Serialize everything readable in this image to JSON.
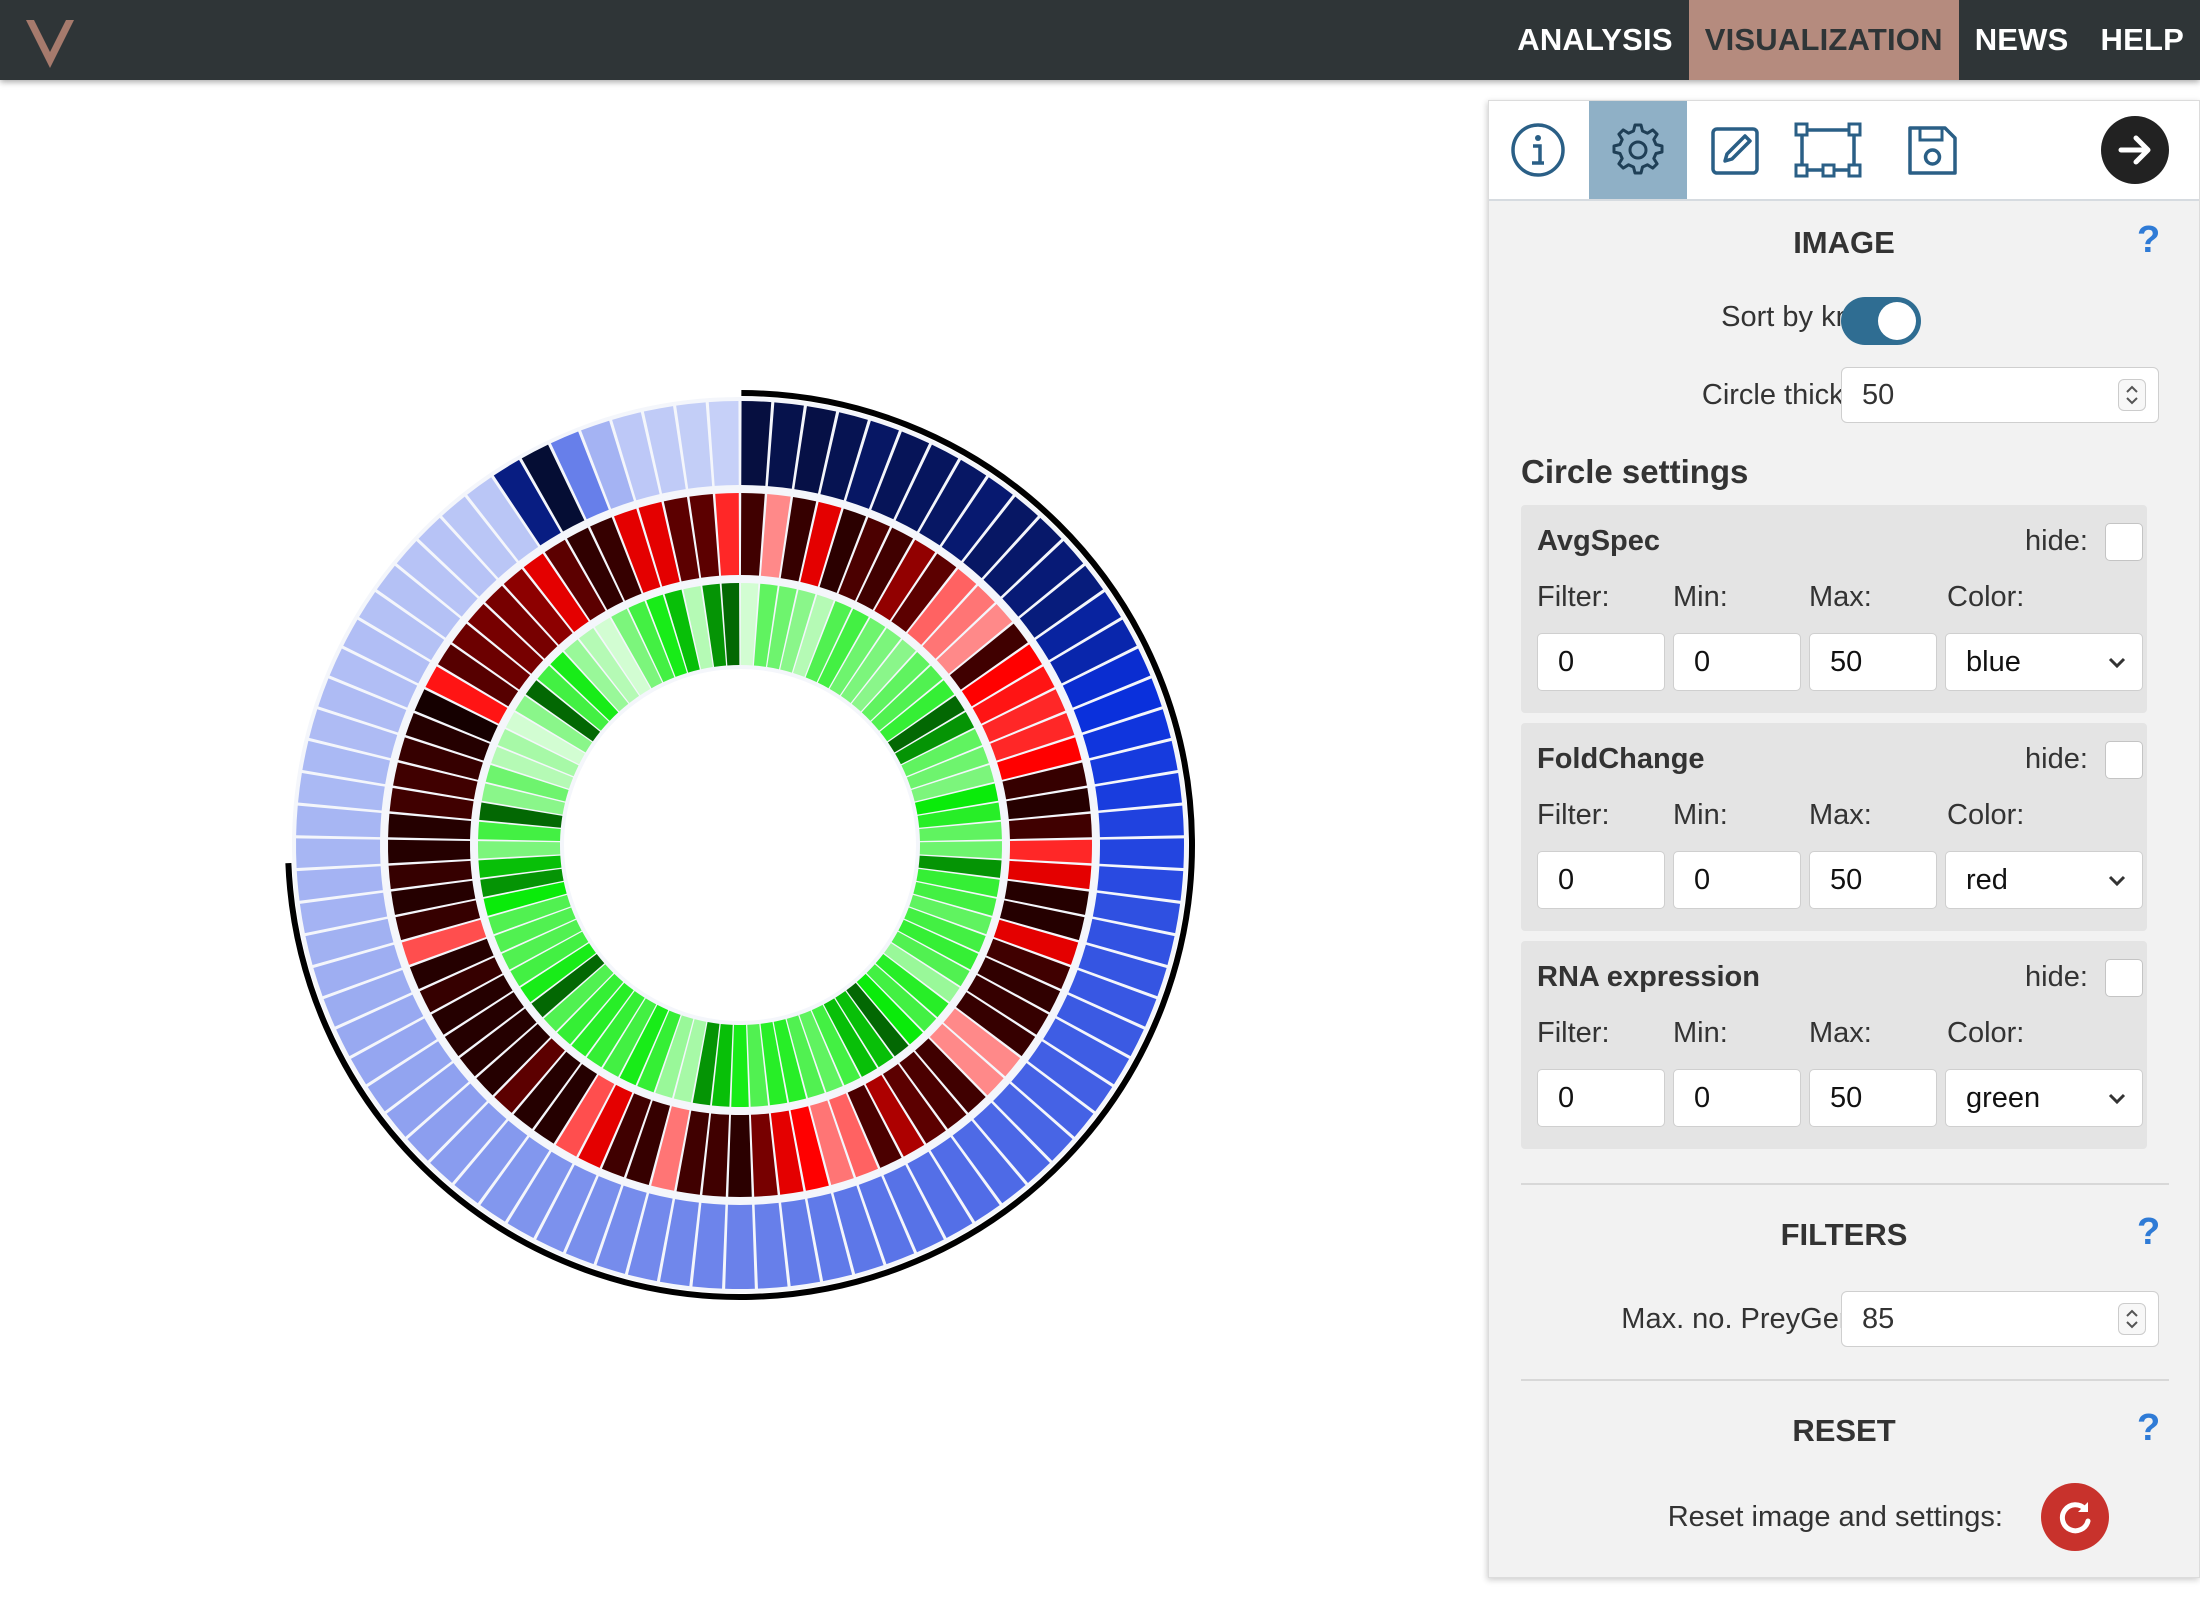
{
  "nav": {
    "items": [
      "ANALYSIS",
      "VISUALIZATION",
      "NEWS",
      "HELP"
    ],
    "active": "VISUALIZATION",
    "logo_icon": "v-logo-icon",
    "bar_color": "#2f3537",
    "active_color": "#b58b7e"
  },
  "panel": {
    "tabs": [
      {
        "icon": "info-icon",
        "active": false
      },
      {
        "icon": "gear-icon",
        "active": true
      },
      {
        "icon": "edit-icon",
        "active": false
      },
      {
        "icon": "selection-icon",
        "active": false
      },
      {
        "icon": "save-icon",
        "active": false
      }
    ],
    "collapse_icon": "arrow-right-icon",
    "image": {
      "title": "IMAGE",
      "help": "?",
      "sort_label": "Sort by known:",
      "sort_on": true,
      "thickness_label": "Circle thickness:",
      "thickness_value": "50"
    },
    "circle_settings_title": "Circle settings",
    "circles": [
      {
        "name": "AvgSpec",
        "hide_label": "hide:",
        "filter_label": "Filter:",
        "min_label": "Min:",
        "max_label": "Max:",
        "color_label": "Color:",
        "filter": "0",
        "min": "0",
        "max": "50",
        "color": "blue"
      },
      {
        "name": "FoldChange",
        "hide_label": "hide:",
        "filter_label": "Filter:",
        "min_label": "Min:",
        "max_label": "Max:",
        "color_label": "Color:",
        "filter": "0",
        "min": "0",
        "max": "50",
        "color": "red"
      },
      {
        "name": "RNA expression",
        "hide_label": "hide:",
        "filter_label": "Filter:",
        "min_label": "Min:",
        "max_label": "Max:",
        "color_label": "Color:",
        "filter": "0",
        "min": "0",
        "max": "50",
        "color": "green"
      }
    ],
    "filters": {
      "title": "FILTERS",
      "help": "?",
      "max_label": "Max. no. PreyGene(s):",
      "max_value": "85"
    },
    "reset": {
      "title": "RESET",
      "help": "?",
      "label": "Reset image and settings:",
      "icon": "reset-icon"
    }
  },
  "chart": {
    "type": "circheatmap",
    "segments": 85,
    "known_fraction": 0.75,
    "rings": {
      "avgspec": [
        0.96,
        0.94,
        0.95,
        0.93,
        0.9,
        0.92,
        0.91,
        0.9,
        0.88,
        0.9,
        0.89,
        0.87,
        0.86,
        0.8,
        0.78,
        0.72,
        0.7,
        0.68,
        0.66,
        0.65,
        0.63,
        0.62,
        0.6,
        0.58,
        0.57,
        0.56,
        0.55,
        0.54,
        0.53,
        0.52,
        0.51,
        0.5,
        0.49,
        0.48,
        0.47,
        0.46,
        0.45,
        0.44,
        0.43,
        0.42,
        0.41,
        0.4,
        0.39,
        0.38,
        0.37,
        0.36,
        0.35,
        0.34,
        0.33,
        0.32,
        0.31,
        0.3,
        0.29,
        0.28,
        0.27,
        0.26,
        0.25,
        0.24,
        0.23,
        0.22,
        0.21,
        0.2,
        0.2,
        0.19,
        0.19,
        0.18,
        0.18,
        0.17,
        0.17,
        0.16,
        0.16,
        0.15,
        0.15,
        0.14,
        0.14,
        0.13,
        0.13,
        0.85,
        0.98,
        0.4,
        0.2,
        0.12,
        0.11,
        0.1,
        0.09
      ],
      "foldchange": [
        0.9,
        0.2,
        0.92,
        0.6,
        0.94,
        0.88,
        0.9,
        0.75,
        0.85,
        0.3,
        0.25,
        0.2,
        0.9,
        0.55,
        0.5,
        0.45,
        0.45,
        0.55,
        0.92,
        0.95,
        0.9,
        0.45,
        0.6,
        0.95,
        0.95,
        0.6,
        0.9,
        0.93,
        0.92,
        0.92,
        0.2,
        0.2,
        0.9,
        0.88,
        0.85,
        0.7,
        0.88,
        0.3,
        0.25,
        0.55,
        0.6,
        0.8,
        0.94,
        0.9,
        0.9,
        0.25,
        0.92,
        0.9,
        0.6,
        0.35,
        0.95,
        0.95,
        0.85,
        0.95,
        0.95,
        0.95,
        0.95,
        0.92,
        0.95,
        0.35,
        0.92,
        0.95,
        0.92,
        0.95,
        0.95,
        0.9,
        0.9,
        0.92,
        0.95,
        0.98,
        0.5,
        0.86,
        0.82,
        0.8,
        0.8,
        0.76,
        0.6,
        0.85,
        0.93,
        0.92,
        0.6,
        0.6,
        0.85,
        0.85,
        0.45
      ],
      "rna": [
        0.1,
        0.5,
        0.45,
        0.35,
        0.2,
        0.55,
        0.6,
        0.45,
        0.4,
        0.35,
        0.5,
        0.55,
        0.65,
        0.95,
        0.9,
        0.5,
        0.45,
        0.4,
        0.8,
        0.7,
        0.5,
        0.45,
        0.9,
        0.65,
        0.6,
        0.5,
        0.6,
        0.65,
        0.55,
        0.3,
        0.7,
        0.6,
        0.8,
        0.95,
        0.85,
        0.85,
        0.6,
        0.5,
        0.55,
        0.7,
        0.7,
        0.55,
        0.75,
        0.85,
        0.9,
        0.25,
        0.3,
        0.65,
        0.75,
        0.6,
        0.65,
        0.7,
        0.65,
        0.55,
        0.95,
        0.75,
        0.6,
        0.55,
        0.55,
        0.55,
        0.8,
        0.9,
        0.85,
        0.4,
        0.6,
        0.95,
        0.35,
        0.45,
        0.2,
        0.25,
        0.1,
        0.35,
        0.95,
        0.6,
        0.75,
        0.3,
        0.2,
        0.1,
        0.4,
        0.6,
        0.75,
        0.85,
        0.2,
        0.9,
        0.95
      ]
    },
    "colors": {
      "avgspec": "#0a2ad6",
      "foldchange": "#ff0000",
      "rna": "#00ee00",
      "known_arc": "#000000"
    }
  }
}
